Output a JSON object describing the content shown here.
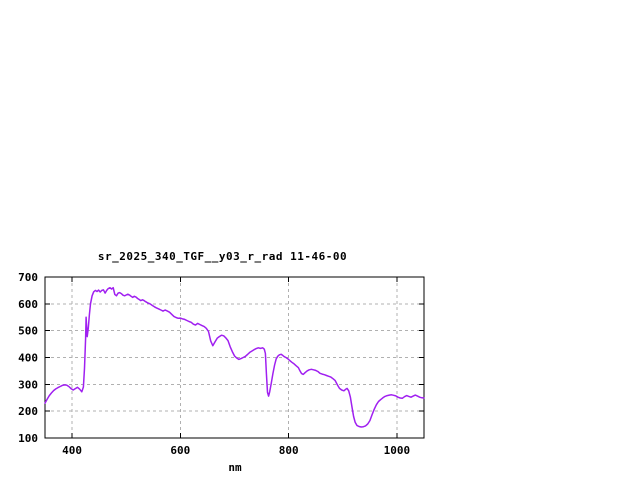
{
  "window": {
    "background": "#ffffff"
  },
  "chart": {
    "title": "sr_2025_340_TGF__y03_r_rad 11-46-00",
    "xlabel": "nm"
  },
  "chart_data": {
    "type": "line",
    "title": "sr_2025_340_TGF__y03_r_rad 11-46-00",
    "xlabel": "nm",
    "ylabel": "",
    "xlim": [
      350,
      1050
    ],
    "ylim": [
      100,
      700
    ],
    "x_ticks": [
      400,
      600,
      800,
      1000
    ],
    "y_ticks": [
      100,
      200,
      300,
      400,
      500,
      600,
      700
    ],
    "grid": true,
    "legend_position": "none",
    "line_color": "#a020f0",
    "grid_color": "#b0b0b0",
    "border_color": "#000000",
    "series": [
      {
        "name": "sr_2025_340_TGF__y03_r_rad",
        "x": [
          350,
          354,
          358,
          362,
          366,
          370,
          374,
          378,
          382,
          386,
          390,
          394,
          398,
          402,
          406,
          410,
          414,
          418,
          421,
          423,
          425,
          426,
          428,
          430,
          432,
          434,
          437,
          440,
          443,
          446,
          449,
          452,
          455,
          458,
          461,
          464,
          467,
          470,
          473,
          476,
          479,
          482,
          485,
          488,
          491,
          494,
          497,
          500,
          503,
          506,
          509,
          512,
          515,
          518,
          521,
          524,
          527,
          530,
          533,
          536,
          540,
          544,
          548,
          552,
          556,
          560,
          564,
          568,
          572,
          576,
          580,
          584,
          588,
          592,
          596,
          600,
          604,
          608,
          612,
          616,
          620,
          624,
          628,
          632,
          636,
          640,
          644,
          648,
          652,
          656,
          660,
          664,
          668,
          672,
          676,
          680,
          684,
          688,
          692,
          696,
          700,
          704,
          708,
          712,
          716,
          720,
          724,
          728,
          732,
          736,
          740,
          744,
          748,
          752,
          755,
          757,
          759,
          761,
          763,
          765,
          768,
          771,
          774,
          777,
          780,
          783,
          786,
          789,
          792,
          795,
          798,
          802,
          806,
          810,
          814,
          818,
          821,
          824,
          827,
          830,
          834,
          838,
          842,
          846,
          850,
          854,
          858,
          862,
          866,
          870,
          874,
          878,
          882,
          886,
          890,
          894,
          898,
          902,
          905,
          908,
          911,
          914,
          917,
          920,
          923,
          926,
          930,
          934,
          938,
          942,
          946,
          950,
          954,
          958,
          962,
          966,
          970,
          974,
          978,
          982,
          986,
          990,
          994,
          998,
          1002,
          1006,
          1010,
          1014,
          1018,
          1022,
          1026,
          1030,
          1034,
          1038,
          1042,
          1046,
          1050
        ],
        "y": [
          230,
          245,
          258,
          268,
          277,
          283,
          288,
          292,
          296,
          298,
          297,
          292,
          284,
          279,
          284,
          289,
          282,
          272,
          290,
          360,
          470,
          550,
          478,
          510,
          560,
          600,
          630,
          645,
          650,
          646,
          651,
          644,
          650,
          652,
          640,
          650,
          657,
          660,
          655,
          660,
          635,
          630,
          640,
          642,
          638,
          632,
          630,
          633,
          636,
          633,
          628,
          624,
          628,
          625,
          620,
          616,
          612,
          615,
          612,
          608,
          603,
          600,
          594,
          589,
          585,
          581,
          577,
          573,
          577,
          573,
          569,
          561,
          553,
          549,
          546,
          547,
          544,
          542,
          538,
          534,
          531,
          524,
          521,
          527,
          523,
          519,
          515,
          509,
          497,
          462,
          444,
          458,
          472,
          478,
          483,
          481,
          473,
          463,
          440,
          422,
          406,
          398,
          393,
          396,
          400,
          404,
          411,
          419,
          424,
          429,
          433,
          436,
          434,
          436,
          431,
          415,
          340,
          270,
          256,
          272,
          305,
          340,
          372,
          395,
          405,
          410,
          412,
          408,
          403,
          400,
          396,
          389,
          382,
          376,
          369,
          362,
          350,
          340,
          337,
          343,
          350,
          354,
          356,
          354,
          352,
          348,
          341,
          338,
          336,
          333,
          330,
          327,
          321,
          314,
          298,
          285,
          279,
          276,
          281,
          285,
          276,
          252,
          215,
          180,
          158,
          147,
          143,
          141,
          142,
          145,
          152,
          165,
          186,
          207,
          224,
          236,
          243,
          250,
          255,
          258,
          260,
          261,
          259,
          257,
          252,
          249,
          248,
          254,
          258,
          255,
          252,
          256,
          260,
          256,
          252,
          250,
          249
        ]
      }
    ]
  }
}
